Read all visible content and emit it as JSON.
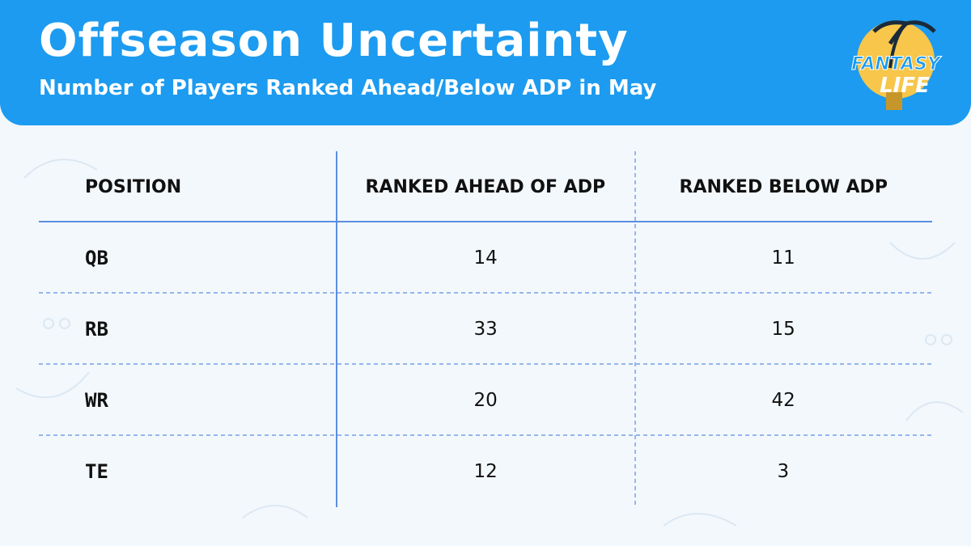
{
  "header": {
    "title": "Offseason Uncertainty",
    "subtitle": "Number of Players Ranked Ahead/Below ADP in May",
    "logo": [
      "FANTASY",
      "LIFE"
    ]
  },
  "table": {
    "columns": [
      "POSITION",
      "RANKED AHEAD OF ADP",
      "RANKED BELOW ADP"
    ],
    "rows": [
      [
        "QB",
        14,
        11
      ],
      [
        "RB",
        33,
        15
      ],
      [
        "WR",
        20,
        42
      ],
      [
        "TE",
        12,
        3
      ]
    ]
  }
}
